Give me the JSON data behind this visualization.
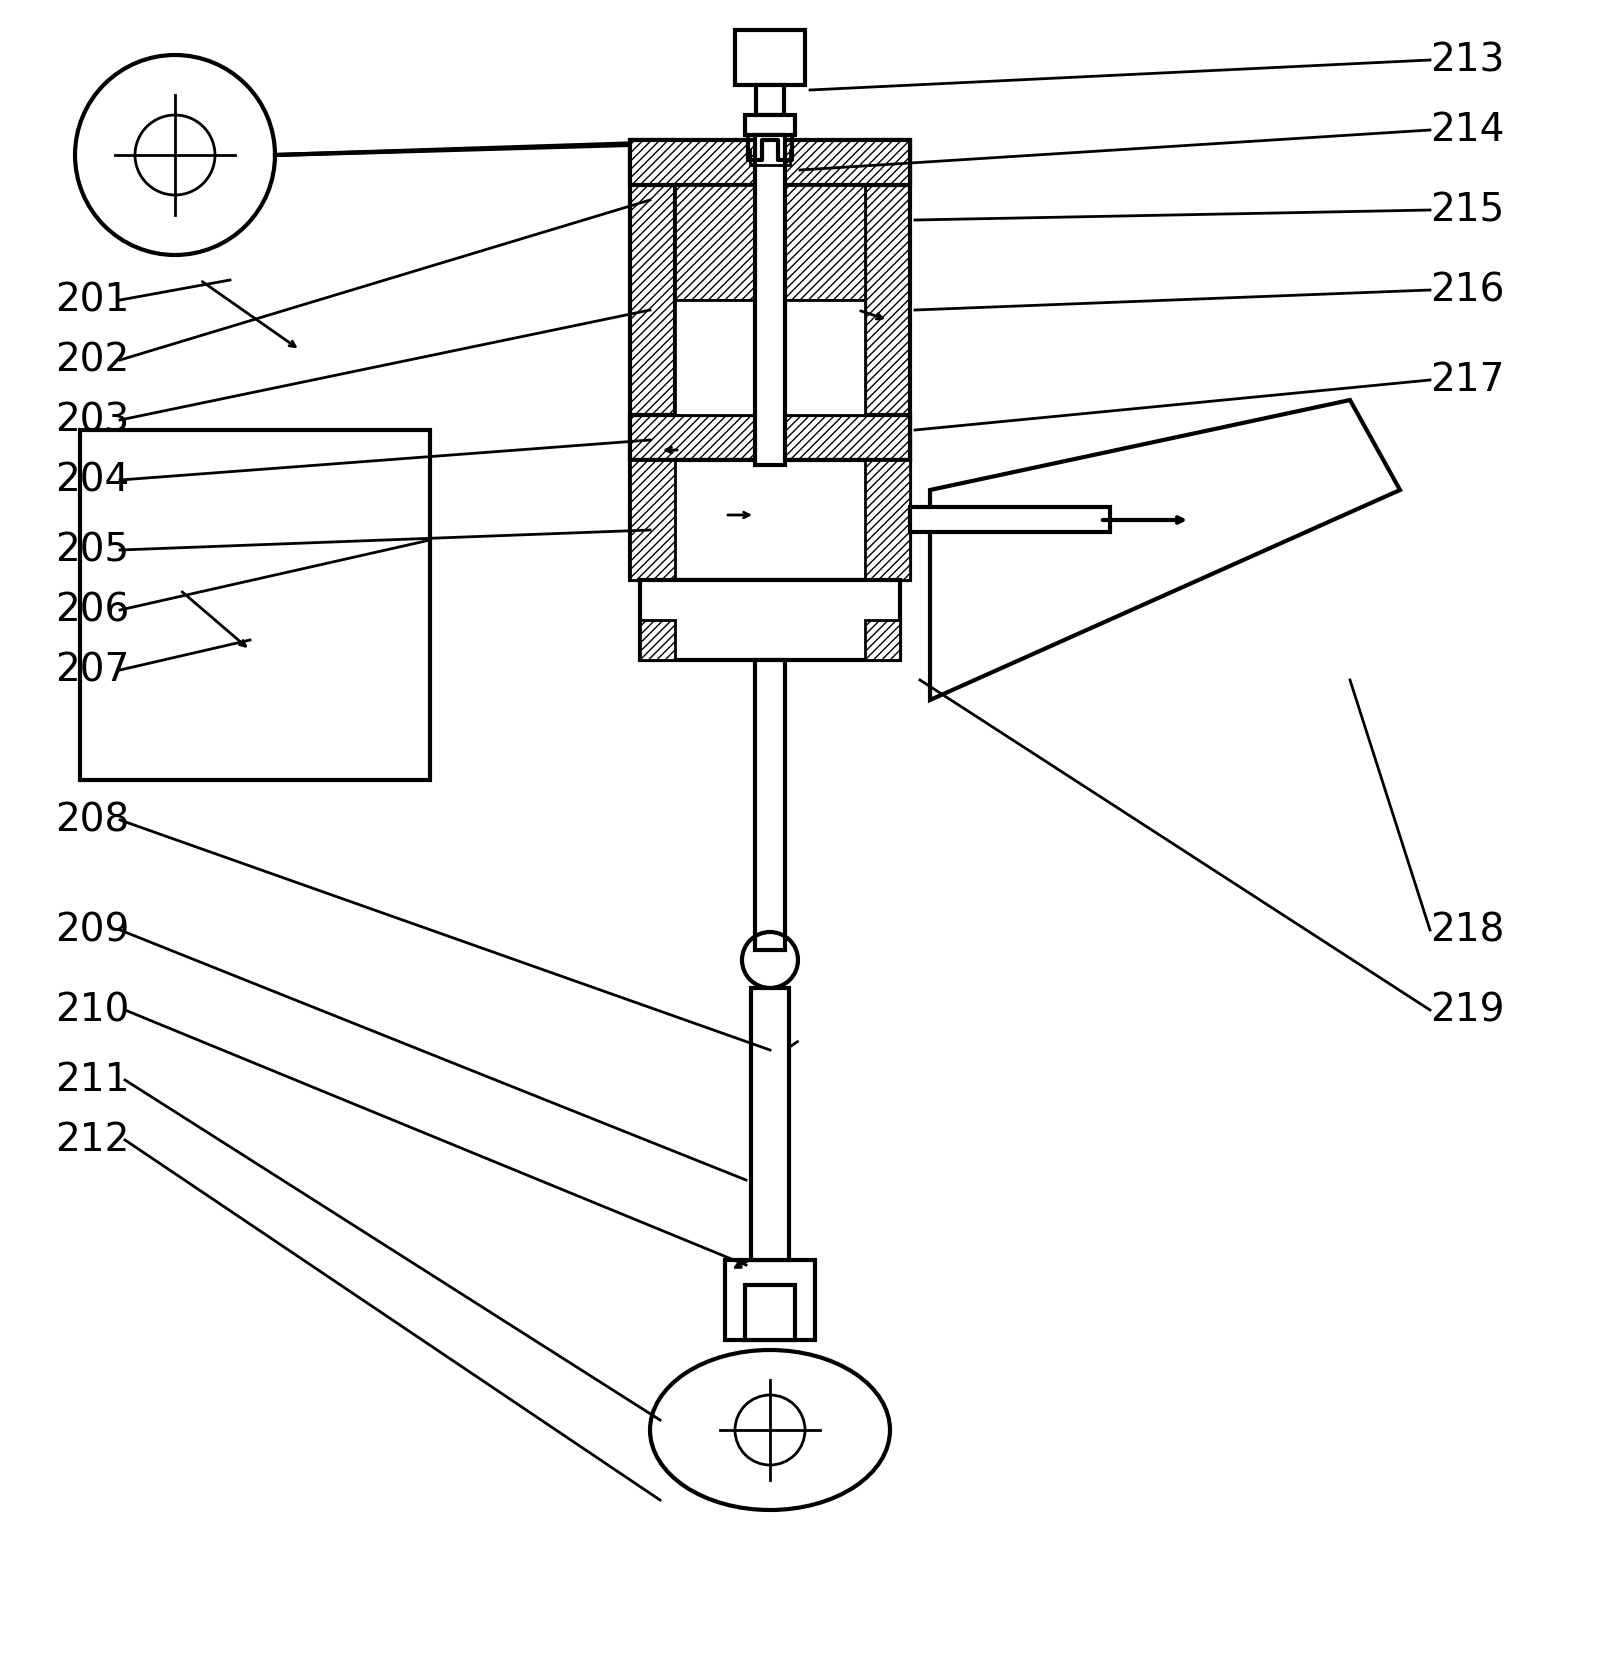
{
  "title": "",
  "background_color": "#ffffff",
  "line_color": "#000000",
  "hatch_color": "#000000",
  "labels_left": [
    "201",
    "202",
    "203",
    "204",
    "205",
    "206",
    "207",
    "208",
    "209",
    "210",
    "211",
    "212"
  ],
  "labels_right": [
    "213",
    "214",
    "215",
    "216",
    "217",
    "218",
    "219"
  ],
  "label_fontsize": 28,
  "lw": 2.0,
  "lw_thick": 3.0
}
